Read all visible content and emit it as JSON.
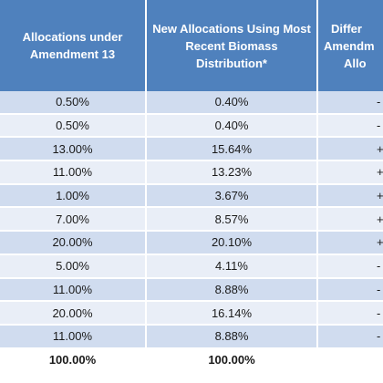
{
  "table": {
    "headers": {
      "col1": "Allocations under Amendment 13",
      "col2": "New Allocations  Using Most Recent Biomass Distribution*",
      "col3_line1": "Differ",
      "col3_line2": "Amendm",
      "col3_line3": "Allo"
    },
    "rows": [
      {
        "amendment13": "0.50%",
        "new_alloc": "0.40%",
        "diff": "-"
      },
      {
        "amendment13": "0.50%",
        "new_alloc": "0.40%",
        "diff": "-"
      },
      {
        "amendment13": "13.00%",
        "new_alloc": "15.64%",
        "diff": "+"
      },
      {
        "amendment13": "11.00%",
        "new_alloc": "13.23%",
        "diff": "+"
      },
      {
        "amendment13": "1.00%",
        "new_alloc": "3.67%",
        "diff": "+"
      },
      {
        "amendment13": "7.00%",
        "new_alloc": "8.57%",
        "diff": "+"
      },
      {
        "amendment13": "20.00%",
        "new_alloc": "20.10%",
        "diff": "+"
      },
      {
        "amendment13": "5.00%",
        "new_alloc": "4.11%",
        "diff": "-"
      },
      {
        "amendment13": "11.00%",
        "new_alloc": "8.88%",
        "diff": "-"
      },
      {
        "amendment13": "20.00%",
        "new_alloc": "16.14%",
        "diff": "-"
      },
      {
        "amendment13": "11.00%",
        "new_alloc": "8.88%",
        "diff": "-"
      }
    ],
    "total": {
      "amendment13": "100.00%",
      "new_alloc": "100.00%"
    }
  },
  "colors": {
    "header_bg": "#4f81bd",
    "row_dark": "#d0dcef",
    "row_light": "#e9eef7"
  }
}
